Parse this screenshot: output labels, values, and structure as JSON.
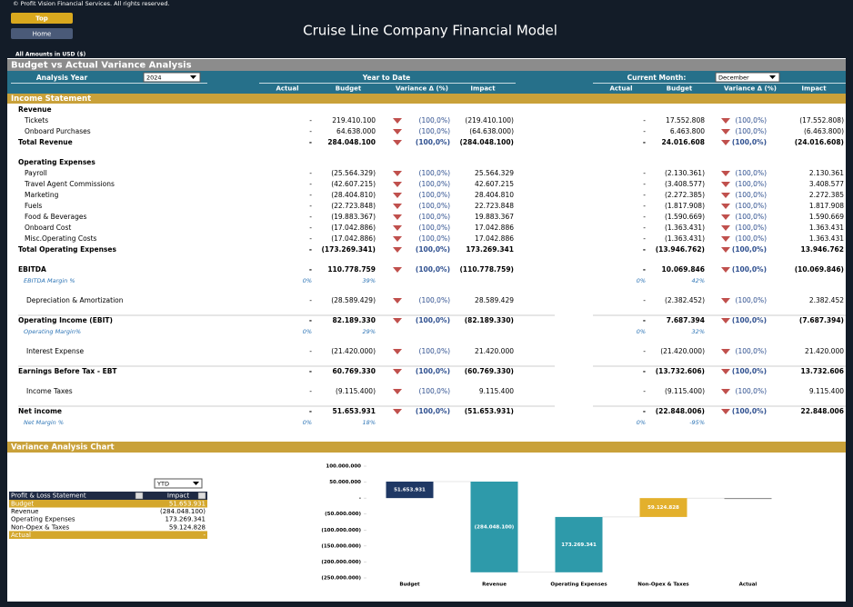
{
  "header": {
    "copyright": "© Profit Vision Financial Services. All rights reserved.",
    "buttons": [
      "Top",
      "Home"
    ],
    "title": "Cruise Line Company Financial Model",
    "currency_note": "All Amounts in  USD ($)"
  },
  "analysis": {
    "title": "Budget vs Actual Variance Analysis",
    "year_label": "Analysis Year",
    "year": "2024",
    "ytd_label": "Year to Date",
    "month_label": "Current Month:",
    "month": "December",
    "columns": [
      "Actual",
      "Budget",
      "Variance Δ  (%)",
      "Impact"
    ]
  },
  "statement": {
    "title": "Income Statement",
    "rows": [
      {
        "label": "Revenue",
        "kind": "group"
      },
      {
        "label": "Tickets",
        "kind": "item",
        "ytd": [
          "-",
          "219.410.100",
          "(100,0%)",
          "(219.410.100)"
        ],
        "cm": [
          "-",
          "17.552.808",
          "(100,0%)",
          "(17.552.808)"
        ]
      },
      {
        "label": "Onboard Purchases",
        "kind": "item",
        "ytd": [
          "-",
          "64.638.000",
          "(100,0%)",
          "(64.638.000)"
        ],
        "cm": [
          "-",
          "6.463.800",
          "(100,0%)",
          "(6.463.800)"
        ]
      },
      {
        "label": "Total Revenue",
        "kind": "total",
        "ytd": [
          "-",
          "284.048.100",
          "(100,0%)",
          "(284.048.100)"
        ],
        "cm": [
          "-",
          "24.016.608",
          "(100,0%)",
          "(24.016.608)"
        ]
      },
      {
        "label": "Operating Expenses",
        "kind": "group"
      },
      {
        "label": "Payroll",
        "kind": "item",
        "ytd": [
          "-",
          "(25.564.329)",
          "(100,0%)",
          "25.564.329"
        ],
        "cm": [
          "-",
          "(2.130.361)",
          "(100,0%)",
          "2.130.361"
        ]
      },
      {
        "label": "Travel Agent Commissions",
        "kind": "item",
        "ytd": [
          "-",
          "(42.607.215)",
          "(100,0%)",
          "42.607.215"
        ],
        "cm": [
          "-",
          "(3.408.577)",
          "(100,0%)",
          "3.408.577"
        ]
      },
      {
        "label": "Marketing",
        "kind": "item",
        "ytd": [
          "-",
          "(28.404.810)",
          "(100,0%)",
          "28.404.810"
        ],
        "cm": [
          "-",
          "(2.272.385)",
          "(100,0%)",
          "2.272.385"
        ]
      },
      {
        "label": "Fuels",
        "kind": "item",
        "ytd": [
          "-",
          "(22.723.848)",
          "(100,0%)",
          "22.723.848"
        ],
        "cm": [
          "-",
          "(1.817.908)",
          "(100,0%)",
          "1.817.908"
        ]
      },
      {
        "label": "Food & Beverages",
        "kind": "item",
        "ytd": [
          "-",
          "(19.883.367)",
          "(100,0%)",
          "19.883.367"
        ],
        "cm": [
          "-",
          "(1.590.669)",
          "(100,0%)",
          "1.590.669"
        ]
      },
      {
        "label": "Onboard Cost",
        "kind": "item",
        "ytd": [
          "-",
          "(17.042.886)",
          "(100,0%)",
          "17.042.886"
        ],
        "cm": [
          "-",
          "(1.363.431)",
          "(100,0%)",
          "1.363.431"
        ]
      },
      {
        "label": "Misc.Operating Costs",
        "kind": "item",
        "ytd": [
          "-",
          "(17.042.886)",
          "(100,0%)",
          "17.042.886"
        ],
        "cm": [
          "-",
          "(1.363.431)",
          "(100,0%)",
          "1.363.431"
        ]
      },
      {
        "label": "Total Operating Expenses",
        "kind": "total",
        "ytd": [
          "-",
          "(173.269.341)",
          "(100,0%)",
          "173.269.341"
        ],
        "cm": [
          "-",
          "(13.946.762)",
          "(100,0%)",
          "13.946.762"
        ]
      },
      {
        "label": "EBITDA",
        "kind": "total",
        "ytd": [
          "-",
          "110.778.759",
          "(100,0%)",
          "(110.778.759)"
        ],
        "cm": [
          "-",
          "10.069.846",
          "(100,0%)",
          "(10.069.846)"
        ]
      },
      {
        "label": "EBITDA Margin %",
        "kind": "margin",
        "ytd": [
          "0%",
          "39%"
        ],
        "cm": [
          "0%",
          "42%"
        ]
      },
      {
        "label": "Depreciation & Amortization",
        "kind": "line",
        "ytd": [
          "-",
          "(28.589.429)",
          "(100,0%)",
          "28.589.429"
        ],
        "cm": [
          "-",
          "(2.382.452)",
          "(100,0%)",
          "2.382.452"
        ]
      },
      {
        "label": "Operating Income (EBIT)",
        "kind": "total",
        "ytd": [
          "-",
          "82.189.330",
          "(100,0%)",
          "(82.189.330)"
        ],
        "cm": [
          "-",
          "7.687.394",
          "(100,0%)",
          "(7.687.394)"
        ]
      },
      {
        "label": "Operating Margin%",
        "kind": "margin",
        "ytd": [
          "0%",
          "29%"
        ],
        "cm": [
          "0%",
          "32%"
        ]
      },
      {
        "label": "Interest Expense",
        "kind": "line",
        "ytd": [
          "-",
          "(21.420.000)",
          "(100,0%)",
          "21.420.000"
        ],
        "cm": [
          "-",
          "(21.420.000)",
          "(100,0%)",
          "21.420.000"
        ]
      },
      {
        "label": "Earnings Before Tax - EBT",
        "kind": "total",
        "ytd": [
          "-",
          "60.769.330",
          "(100,0%)",
          "(60.769.330)"
        ],
        "cm": [
          "-",
          "(13.732.606)",
          "(100,0%)",
          "13.732.606"
        ]
      },
      {
        "label": "Income Taxes",
        "kind": "line",
        "ytd": [
          "-",
          "(9.115.400)",
          "(100,0%)",
          "9.115.400"
        ],
        "cm": [
          "-",
          "(9.115.400)",
          "(100,0%)",
          "9.115.400"
        ]
      },
      {
        "label": "Net income",
        "kind": "total",
        "ytd": [
          "-",
          "51.653.931",
          "(100,0%)",
          "(51.653.931)"
        ],
        "cm": [
          "-",
          "(22.848.006)",
          "(100,0%)",
          "22.848.006"
        ]
      },
      {
        "label": "Net Margin %",
        "kind": "margin",
        "ytd": [
          "0%",
          "18%"
        ],
        "cm": [
          "0%",
          "-95%"
        ]
      }
    ]
  },
  "variance": {
    "title": "Variance Analysis Chart",
    "filter": "YTD",
    "table": {
      "headers": [
        "Profit & Loss Statement",
        "Impact"
      ],
      "rows": [
        [
          "Budget",
          "51.653.931"
        ],
        [
          "Revenue",
          "(284.048.100)"
        ],
        [
          "Operating Expenses",
          "173.269.341"
        ],
        [
          "Non-Opex & Taxes",
          "59.124.828"
        ],
        [
          "Actual",
          "-"
        ]
      ]
    }
  },
  "chart_data": {
    "type": "waterfall",
    "categories": [
      "Budget",
      "Revenue",
      "Operating Expenses",
      "Non-Opex & Taxes",
      "Actual"
    ],
    "values": [
      51653931,
      -284048100,
      173269341,
      59124828,
      0
    ],
    "value_labels": [
      "51.653.931",
      "(284.048.100)",
      "173.269.341",
      "59.124.828",
      null
    ],
    "measure": [
      "absolute",
      "relative",
      "relative",
      "relative",
      "absolute"
    ],
    "colors": [
      "#1f3864",
      "#2e9aaa",
      "#2e9aaa",
      "#e3b02c",
      "#7f7f7f"
    ],
    "ylim": [
      -250000000,
      100000000
    ],
    "yticks": [
      {
        "value": 100000000,
        "label": "100.000.000"
      },
      {
        "value": 50000000,
        "label": "50.000.000"
      },
      {
        "value": 0,
        "label": "-"
      },
      {
        "value": -50000000,
        "label": "(50.000.000)"
      },
      {
        "value": -100000000,
        "label": "(100.000.000)"
      },
      {
        "value": -150000000,
        "label": "(150.000.000)"
      },
      {
        "value": -200000000,
        "label": "(200.000.000)"
      },
      {
        "value": -250000000,
        "label": "(250.000.000)"
      }
    ],
    "grid": false
  }
}
